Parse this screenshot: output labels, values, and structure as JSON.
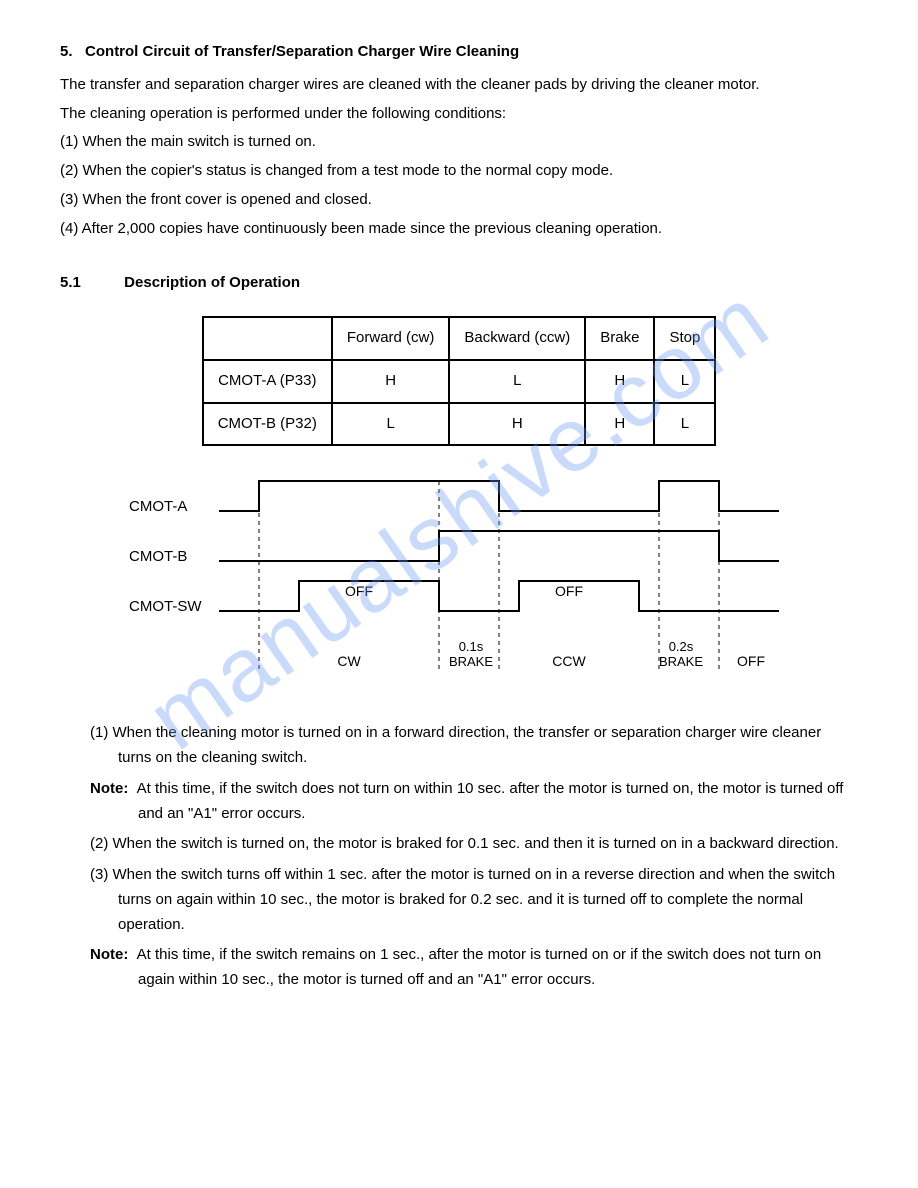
{
  "watermark": "manualshive.com",
  "section": {
    "number": "5.",
    "title": "Control Circuit of Transfer/Separation Charger Wire Cleaning"
  },
  "intro1": "The transfer and separation charger wires are cleaned with the cleaner pads by driving the cleaner motor.",
  "intro2": "The cleaning operation is performed under the following conditions:",
  "conditions": [
    "(1) When the main switch is turned on.",
    "(2) When the copier's status is changed from a test mode to the normal copy mode.",
    "(3) When the front cover is opened and closed.",
    "(4) After 2,000 copies have continuously been made since the previous cleaning operation."
  ],
  "subsection": {
    "number": "5.1",
    "title": "Description of Operation"
  },
  "table": {
    "headers": [
      "",
      "Forward (cw)",
      "Backward (ccw)",
      "Brake",
      "Stop"
    ],
    "rows": [
      {
        "label": "CMOT-A  (P33)",
        "cells": [
          "H",
          "L",
          "H",
          "L"
        ]
      },
      {
        "label": "CMOT-B  (P32)",
        "cells": [
          "L",
          "H",
          "H",
          "L"
        ]
      }
    ]
  },
  "timing": {
    "signals": [
      "CMOT-A",
      "CMOT-B",
      "CMOT-SW"
    ],
    "sw_off_labels": [
      "OFF",
      "OFF"
    ],
    "phase_labels": [
      "CW",
      "0.1s BRAKE",
      "CCW",
      "0.2s BRAKE",
      "OFF"
    ],
    "stroke": "#000",
    "stroke_width": 2,
    "dash": "4,4"
  },
  "descriptions": [
    {
      "type": "item",
      "text": "(1)  When the cleaning motor is turned on in a forward direction, the transfer or separation charger wire cleaner turns on the cleaning switch."
    },
    {
      "type": "note",
      "label": "Note:",
      "text": "At this time, if the switch does not turn on within 10 sec. after the motor is turned on, the motor is turned off and an \"A1\" error occurs."
    },
    {
      "type": "item",
      "text": "(2)  When the switch is turned on, the motor is braked for 0.1 sec. and then it is turned on in a backward direction."
    },
    {
      "type": "item",
      "text": "(3)  When the switch turns off within 1 sec. after the motor is turned on in a reverse direction and when the switch turns on again within 10 sec., the motor is braked for 0.2 sec. and it is turned off to complete the normal operation."
    },
    {
      "type": "note",
      "label": "Note:",
      "text": "At this time, if the switch remains on 1 sec., after the motor is turned on or if the switch does not turn on again within 10 sec., the motor is turned off and an \"A1\" error occurs."
    }
  ]
}
